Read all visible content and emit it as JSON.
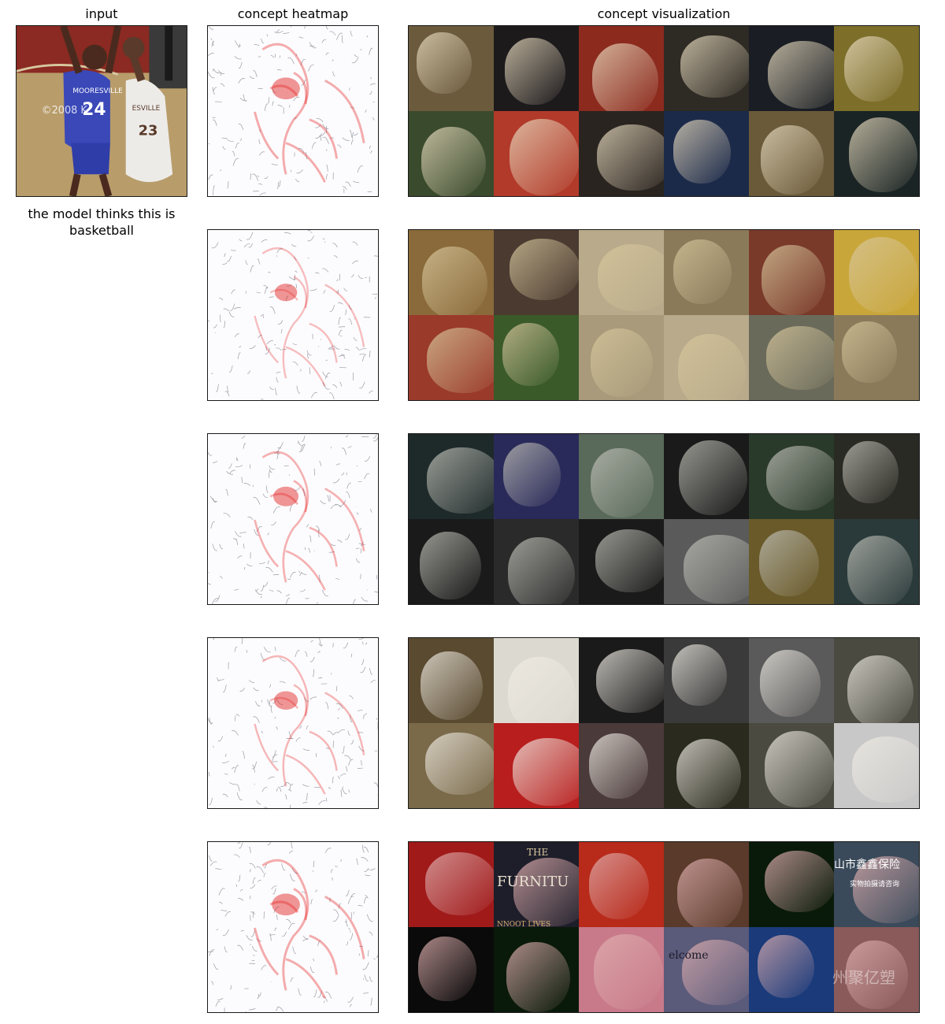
{
  "headers": {
    "input": "input",
    "heatmap": "concept heatmap",
    "visualization": "concept visualization"
  },
  "caption": "the model thinks this is basketball",
  "input_image": {
    "description_icon": "basketball-photo",
    "watermark": "©2008 K",
    "jersey_left": "MOORESVILLE",
    "number_left": "24",
    "jersey_right": "ESVILLE",
    "number_right": "23"
  },
  "concept_rows": [
    {
      "id": 1,
      "theme": "people-faces",
      "tiles": [
        "#6b5a3c",
        "#1d1a1c",
        "#8c2a1e",
        "#2e2a24",
        "#1a1e24",
        "#7d6e2a",
        "#3a4a2c",
        "#b23a2a",
        "#2a2420",
        "#1c2a4a",
        "#6a5a3a",
        "#1a2424"
      ]
    },
    {
      "id": 2,
      "theme": "basketball-players",
      "tiles": [
        "#8a6a3a",
        "#4a3a30",
        "#b8aa8a",
        "#8a7a5a",
        "#7a3a2a",
        "#c9a63a",
        "#9a3a2a",
        "#3a5a2a",
        "#a89a7a",
        "#b8aa8a",
        "#6a6a5a",
        "#8a7a5a"
      ]
    },
    {
      "id": 3,
      "theme": "team-sports",
      "tiles": [
        "#1e2a2a",
        "#2a2a5a",
        "#5a6a5a",
        "#1a1a1a",
        "#2a3a2a",
        "#2a2a24",
        "#1a1a1a",
        "#2a2a2a",
        "#1a1a1a",
        "#5a5a5a",
        "#6a5a2a",
        "#2a3a3a"
      ]
    },
    {
      "id": 4,
      "theme": "spotted-patterns",
      "tiles": [
        "#5a4a30",
        "#dcdad0",
        "#1a1a1a",
        "#3a3a3a",
        "#5a5a5a",
        "#4a4a40",
        "#7a6a4a",
        "#b81e1e",
        "#4a3a3a",
        "#2a2a1e",
        "#4a4a40",
        "#c8c8c8"
      ]
    },
    {
      "id": 5,
      "theme": "mixed-texture",
      "tiles": [
        "#a01a1a",
        "#1e1e2a",
        "#b82a1a",
        "#5a3a2a",
        "#0a1a0a",
        "#3a4a5a",
        "#0a0a0a",
        "#0a1a0a",
        "#c87a8a",
        "#5a5a7a",
        "#1a3a7a",
        "#8a5a5a"
      ],
      "texts": [
        "THE",
        "FURNITU",
        "NNOOT LIVES",
        "elcome",
        "山市鑫鑫保险",
        "州聚亿塑",
        "实物拍摄请咨询"
      ]
    }
  ]
}
